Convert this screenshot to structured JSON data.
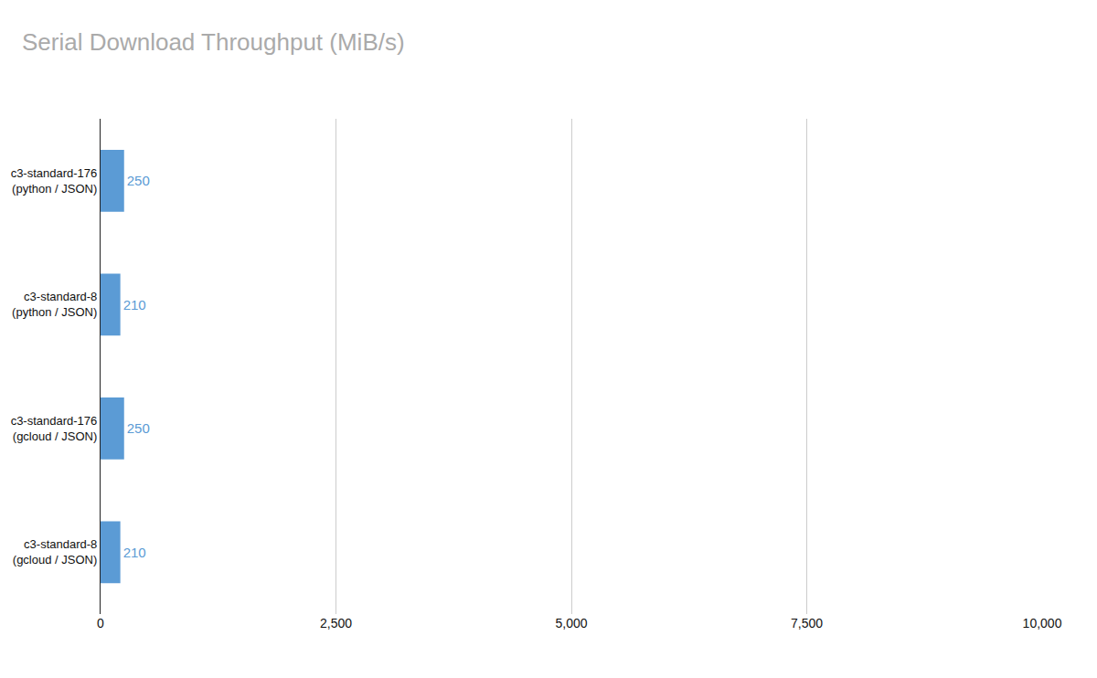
{
  "chart_data": {
    "type": "bar",
    "orientation": "horizontal",
    "title": "Serial Download Throughput (MiB/s)",
    "categories": [
      "c3-standard-8\n(gcloud / JSON)",
      "c3-standard-176\n(gcloud / JSON)",
      "c3-standard-8\n(python / JSON)",
      "c3-standard-176\n(python / JSON)"
    ],
    "values": [
      210,
      250,
      210,
      250
    ],
    "color": "#5b9bd5",
    "data_labels": true,
    "xlim": [
      0,
      10000
    ],
    "xticks": [
      0,
      {
        "value": 2500,
        "label": "2,500"
      },
      {
        "value": 5000,
        "label": "5,000"
      },
      {
        "value": 7500,
        "label": "7,500"
      },
      {
        "value": 10000,
        "label": "10,000"
      }
    ],
    "grid": true
  }
}
